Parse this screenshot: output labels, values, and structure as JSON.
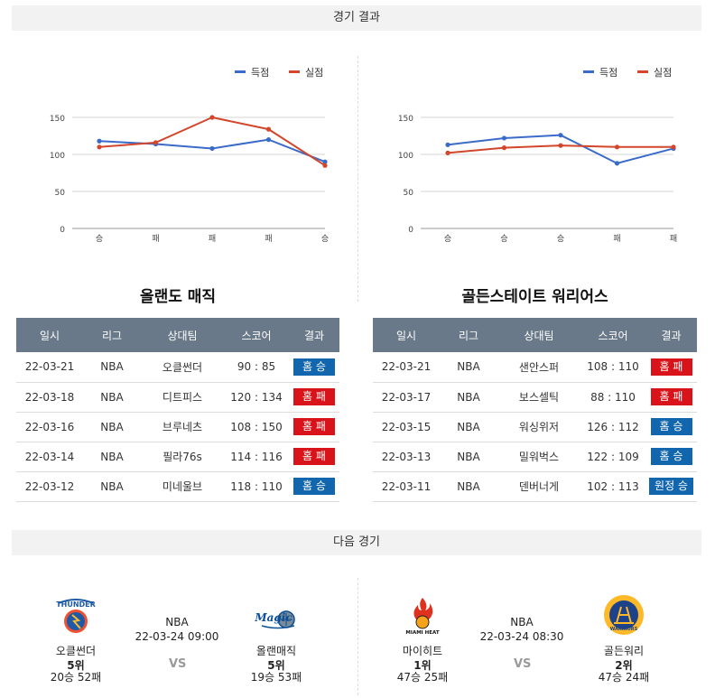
{
  "sections": {
    "results_title": "경기 결과",
    "next_title": "다음 경기"
  },
  "legend": {
    "scored": "득점",
    "conceded": "실점"
  },
  "colors": {
    "scored": "#3b6bc8",
    "conceded": "#d2462c",
    "win": "#1266ae",
    "loss": "#d8141a",
    "header": "#6a7989"
  },
  "table_headers": [
    "일시",
    "리그",
    "상대팀",
    "스코어",
    "결과"
  ],
  "teams": [
    {
      "name": "올랜도 매직",
      "chart_data": {
        "type": "line",
        "categories": [
          "승",
          "패",
          "패",
          "패",
          "승"
        ],
        "series": [
          {
            "name": "득점",
            "values": [
              118,
              114,
              108,
              120,
              90
            ]
          },
          {
            "name": "실점",
            "values": [
              110,
              116,
              150,
              134,
              85
            ]
          }
        ],
        "yticks": [
          "0",
          "50",
          "100",
          "150"
        ],
        "ylim": [
          0,
          150
        ],
        "legend": "top-right",
        "grid": true
      },
      "games": [
        {
          "date": "22-03-21",
          "league": "NBA",
          "opponent": "오클썬더",
          "score": "90 : 85",
          "result": "홈 승",
          "win": true
        },
        {
          "date": "22-03-18",
          "league": "NBA",
          "opponent": "디트피스",
          "score": "120 : 134",
          "result": "홈 패",
          "win": false
        },
        {
          "date": "22-03-16",
          "league": "NBA",
          "opponent": "브루네츠",
          "score": "108 : 150",
          "result": "홈 패",
          "win": false
        },
        {
          "date": "22-03-14",
          "league": "NBA",
          "opponent": "필라76s",
          "score": "114 : 116",
          "result": "홈 패",
          "win": false
        },
        {
          "date": "22-03-12",
          "league": "NBA",
          "opponent": "미네울브",
          "score": "118 : 110",
          "result": "홈 승",
          "win": true
        }
      ]
    },
    {
      "name": "골든스테이트 워리어스",
      "chart_data": {
        "type": "line",
        "categories": [
          "승",
          "승",
          "승",
          "패",
          "패"
        ],
        "series": [
          {
            "name": "득점",
            "values": [
              113,
              122,
              126,
              88,
              108
            ]
          },
          {
            "name": "실점",
            "values": [
              102,
              109,
              112,
              110,
              110
            ]
          }
        ],
        "yticks": [
          "0",
          "50",
          "100",
          "150"
        ],
        "ylim": [
          0,
          150
        ],
        "legend": "top-right",
        "grid": true
      },
      "games": [
        {
          "date": "22-03-21",
          "league": "NBA",
          "opponent": "샌안스퍼",
          "score": "108 : 110",
          "result": "홈 패",
          "win": false
        },
        {
          "date": "22-03-17",
          "league": "NBA",
          "opponent": "보스셀틱",
          "score": "88 : 110",
          "result": "홈 패",
          "win": false
        },
        {
          "date": "22-03-15",
          "league": "NBA",
          "opponent": "워싱위저",
          "score": "126 : 112",
          "result": "홈 승",
          "win": true
        },
        {
          "date": "22-03-13",
          "league": "NBA",
          "opponent": "밀워벅스",
          "score": "122 : 109",
          "result": "홈 승",
          "win": true
        },
        {
          "date": "22-03-11",
          "league": "NBA",
          "opponent": "덴버너게",
          "score": "102 : 113",
          "result": "원정 승",
          "win": true
        }
      ]
    }
  ],
  "next_games": [
    {
      "league": "NBA",
      "datetime": "22-03-24 09:00",
      "vs": "VS",
      "home": {
        "name": "오클썬더",
        "rank": "5위",
        "record": "20승 52패",
        "logo_text": "THUNDER"
      },
      "away": {
        "name": "올랜매직",
        "rank": "5위",
        "record": "19승 53패",
        "logo_text": "Magic"
      }
    },
    {
      "league": "NBA",
      "datetime": "22-03-24 08:30",
      "vs": "VS",
      "home": {
        "name": "마이히트",
        "rank": "1위",
        "record": "47승 25패",
        "logo_text": "MIAMI HEAT"
      },
      "away": {
        "name": "골든워리",
        "rank": "2위",
        "record": "47승 24패",
        "logo_text": "WARRIORS"
      }
    }
  ]
}
